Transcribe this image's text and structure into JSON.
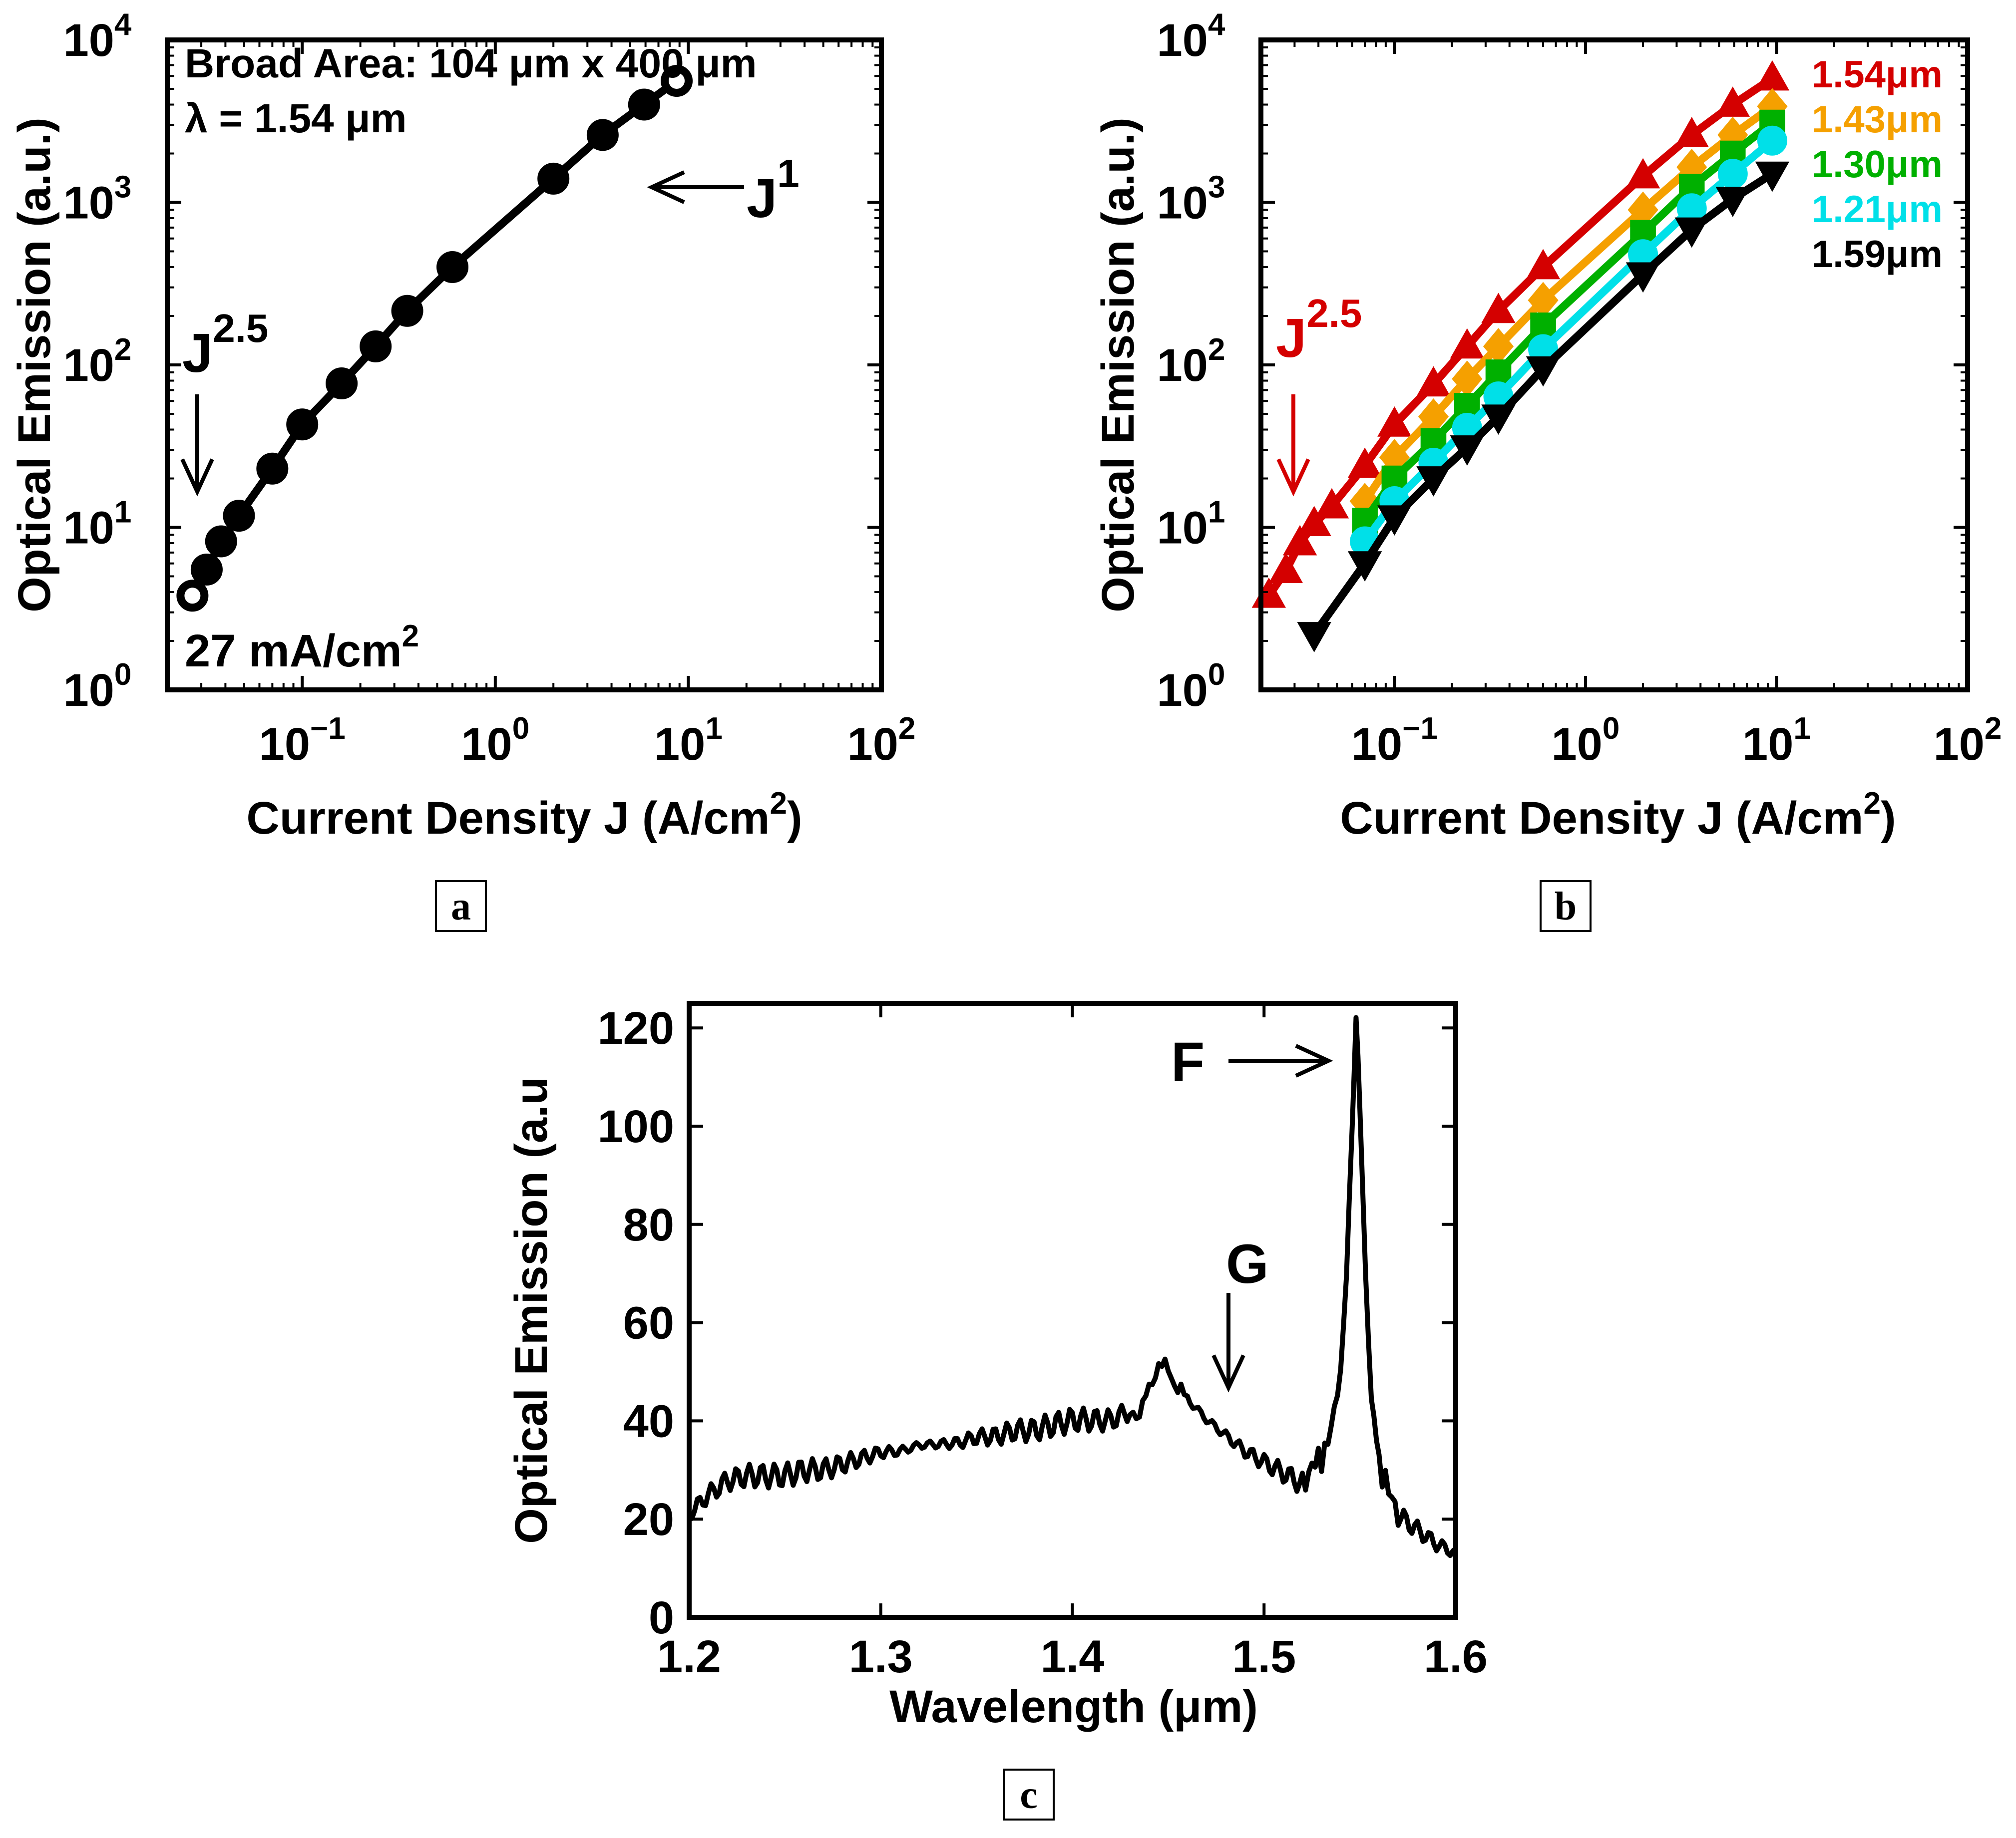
{
  "chart_data": [
    {
      "panel": "a",
      "type": "line",
      "xscale": "log",
      "yscale": "log",
      "xlabel": "Current Density J (A/cm",
      "xlabel_sup": "2",
      "xlabel_end": ")",
      "ylabel": "Optical Emission (a.u.)",
      "xlim": [
        0.02,
        100
      ],
      "ylim": [
        1,
        10000
      ],
      "xticks": [
        {
          "base": "10",
          "exp": "−1",
          "v": 0.1
        },
        {
          "base": "10",
          "exp": "0",
          "v": 1
        },
        {
          "base": "10",
          "exp": "1",
          "v": 10
        },
        {
          "base": "10",
          "exp": "2",
          "v": 100
        }
      ],
      "yticks": [
        {
          "base": "10",
          "exp": "0",
          "v": 1
        },
        {
          "base": "10",
          "exp": "1",
          "v": 10
        },
        {
          "base": "10",
          "exp": "2",
          "v": 100
        },
        {
          "base": "10",
          "exp": "3",
          "v": 1000
        },
        {
          "base": "10",
          "exp": "4",
          "v": 10000
        }
      ],
      "series": [
        {
          "name": "1.54 um",
          "color": "#000000",
          "marker": "circle",
          "x": [
            0.027,
            0.032,
            0.038,
            0.047,
            0.07,
            0.1,
            0.16,
            0.24,
            0.35,
            0.6,
            2.0,
            3.6,
            5.9,
            8.7
          ],
          "y": [
            3.8,
            5.5,
            8.2,
            11.8,
            23,
            43,
            77,
            130,
            215,
            400,
            1400,
            2600,
            4000,
            5600
          ]
        }
      ],
      "annotations": {
        "device": "Broad Area: 104 μm x 400 μm",
        "wavelength": "λ = 1.54 μm",
        "slope_low": "J",
        "slope_low_exp": "2.5",
        "slope_high": "J",
        "slope_high_exp": "1",
        "threshold": "27 mA/cm",
        "threshold_sup": "2"
      }
    },
    {
      "panel": "b",
      "type": "line",
      "xscale": "log",
      "yscale": "log",
      "xlabel": "Current Density J (A/cm",
      "xlabel_sup": "2",
      "xlabel_end": ")",
      "ylabel": "Optical Emission (a.u.)",
      "xlim": [
        0.02,
        100
      ],
      "ylim": [
        1,
        10000
      ],
      "xticks": [
        {
          "base": "10",
          "exp": "−1",
          "v": 0.1
        },
        {
          "base": "10",
          "exp": "0",
          "v": 1
        },
        {
          "base": "10",
          "exp": "1",
          "v": 10
        },
        {
          "base": "10",
          "exp": "2",
          "v": 100
        }
      ],
      "yticks": [
        {
          "base": "10",
          "exp": "0",
          "v": 1
        },
        {
          "base": "10",
          "exp": "1",
          "v": 10
        },
        {
          "base": "10",
          "exp": "2",
          "v": 100
        },
        {
          "base": "10",
          "exp": "3",
          "v": 1000
        },
        {
          "base": "10",
          "exp": "4",
          "v": 10000
        }
      ],
      "series": [
        {
          "name": "1.54μm",
          "color": "#d40000",
          "marker": "triangle-up",
          "x": [
            0.022,
            0.027,
            0.032,
            0.038,
            0.047,
            0.07,
            0.1,
            0.16,
            0.24,
            0.35,
            0.6,
            2.0,
            3.6,
            5.9,
            9.5
          ],
          "y": [
            3.8,
            5.4,
            8.0,
            10.5,
            13.5,
            24,
            43,
            76,
            130,
            215,
            400,
            1450,
            2600,
            4000,
            5800
          ]
        },
        {
          "name": "1.43μm",
          "color": "#f5a000",
          "marker": "diamond",
          "x": [
            0.07,
            0.1,
            0.16,
            0.24,
            0.35,
            0.6,
            2.0,
            3.6,
            5.9,
            9.5
          ],
          "y": [
            14.5,
            27,
            48,
            82,
            130,
            250,
            900,
            1650,
            2600,
            3900
          ]
        },
        {
          "name": "1.30μm",
          "color": "#00b000",
          "marker": "square",
          "x": [
            0.07,
            0.1,
            0.16,
            0.24,
            0.35,
            0.6,
            2.0,
            3.6,
            5.9,
            9.5
          ],
          "y": [
            11,
            20,
            34,
            56,
            90,
            175,
            650,
            1250,
            2000,
            3100
          ]
        },
        {
          "name": "1.21μm",
          "color": "#00e0e8",
          "marker": "circle",
          "x": [
            0.07,
            0.1,
            0.16,
            0.24,
            0.35,
            0.6,
            2.0,
            3.6,
            5.9,
            9.5
          ],
          "y": [
            8.2,
            14.5,
            25,
            41,
            64,
            125,
            480,
            920,
            1500,
            2400
          ]
        },
        {
          "name": "1.59μm",
          "color": "#000000",
          "marker": "triangle-down",
          "x": [
            0.038,
            0.07,
            0.1,
            0.16,
            0.24,
            0.35,
            0.6,
            2.0,
            3.6,
            5.9,
            9.5
          ],
          "y": [
            2.2,
            6.0,
            11.5,
            20,
            31,
            48,
            95,
            360,
            680,
            1050,
            1500
          ]
        }
      ],
      "annotations": {
        "slope_low": "J",
        "slope_low_exp": "2.5"
      }
    },
    {
      "panel": "c",
      "type": "line",
      "xlabel": "Wavelength (μm)",
      "ylabel": "Optical Emission (a.u",
      "xlim": [
        1.2,
        1.6
      ],
      "ylim": [
        0,
        125
      ],
      "xticks": [
        "1.2",
        "1.3",
        "1.4",
        "1.5",
        "1.6"
      ],
      "yticks": [
        "0",
        "20",
        "40",
        "60",
        "80",
        "100",
        "120"
      ],
      "series": [
        {
          "name": "spectrum",
          "color": "#000000",
          "x": [
            1.2,
            1.21,
            1.22,
            1.23,
            1.24,
            1.25,
            1.26,
            1.27,
            1.28,
            1.29,
            1.3,
            1.31,
            1.32,
            1.33,
            1.34,
            1.35,
            1.36,
            1.37,
            1.38,
            1.39,
            1.4,
            1.41,
            1.42,
            1.43,
            1.435,
            1.44,
            1.445,
            1.45,
            1.455,
            1.46,
            1.47,
            1.48,
            1.49,
            1.5,
            1.51,
            1.52,
            1.525,
            1.53,
            1.535,
            1.54,
            1.543,
            1.546,
            1.548,
            1.55,
            1.553,
            1.556,
            1.56,
            1.565,
            1.57,
            1.58,
            1.59,
            1.6
          ],
          "y": [
            22,
            26,
            29,
            30,
            30,
            30,
            31,
            31,
            32,
            33,
            34,
            34,
            35,
            35,
            35,
            36,
            36,
            37,
            37,
            38,
            39,
            39,
            39,
            41,
            42,
            46,
            52,
            50,
            47,
            44,
            40,
            37,
            34,
            32,
            30,
            28,
            30,
            33,
            38,
            50,
            70,
            100,
            122,
            105,
            70,
            45,
            32,
            25,
            22,
            19,
            16,
            14
          ]
        }
      ],
      "annotations": {
        "peak_F": "F",
        "peak_G": "G"
      }
    }
  ],
  "panels": {
    "a": {
      "label": "a"
    },
    "b": {
      "label": "b"
    },
    "c": {
      "label": "c"
    }
  }
}
